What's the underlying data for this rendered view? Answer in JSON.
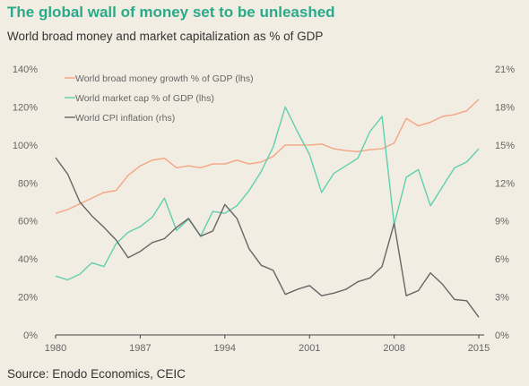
{
  "title": "The global wall of money set to be unleashed",
  "subtitle": "World broad money and market capitalization as % of GDP",
  "source": "Source: Enodo Economics, CEIC",
  "chart_data": {
    "type": "line",
    "xlim": [
      1980,
      2015
    ],
    "ylim_left": [
      0,
      140
    ],
    "ylim_right": [
      0,
      21
    ],
    "x_ticks": [
      "1980",
      "1987",
      "1994",
      "2001",
      "2008",
      "2015"
    ],
    "y_left_ticks": [
      "0%",
      "20%",
      "40%",
      "60%",
      "80%",
      "100%",
      "120%",
      "140%"
    ],
    "y_right_ticks": [
      "0%",
      "3%",
      "6%",
      "9%",
      "12%",
      "15%",
      "18%",
      "21%"
    ],
    "grid": false,
    "legend_position": "top-left",
    "series": [
      {
        "name": "World broad money growth % of GDP (lhs)",
        "axis": "left",
        "color": "#f4a582",
        "x": [
          1980,
          1981,
          1982,
          1983,
          1984,
          1985,
          1986,
          1987,
          1988,
          1989,
          1990,
          1991,
          1992,
          1993,
          1994,
          1995,
          1996,
          1997,
          1998,
          1999,
          2000,
          2001,
          2002,
          2003,
          2004,
          2005,
          2006,
          2007,
          2008,
          2009,
          2010,
          2011,
          2012,
          2013,
          2014,
          2015
        ],
        "y": [
          64,
          66,
          69,
          72,
          75,
          76,
          84,
          89,
          92,
          93,
          88,
          89,
          88,
          90,
          90,
          92,
          90,
          91,
          94,
          100,
          100,
          100,
          100.5,
          98,
          97,
          96.5,
          97.5,
          98,
          101,
          114,
          110,
          112,
          115,
          116,
          118,
          124
        ]
      },
      {
        "name": "World market cap % of GDP (lhs)",
        "axis": "left",
        "color": "#5fcfb0",
        "x": [
          1980,
          1981,
          1982,
          1983,
          1984,
          1985,
          1986,
          1987,
          1988,
          1989,
          1990,
          1991,
          1992,
          1993,
          1994,
          1995,
          1996,
          1997,
          1998,
          1999,
          2000,
          2001,
          2002,
          2003,
          2004,
          2005,
          2006,
          2007,
          2008,
          2009,
          2010,
          2011,
          2012,
          2013,
          2014,
          2015
        ],
        "y": [
          31,
          29,
          32,
          38,
          36,
          48,
          54,
          57,
          62,
          72,
          55,
          61,
          52,
          65,
          64,
          68,
          76,
          86,
          99,
          120,
          107,
          95,
          75,
          85,
          89,
          93,
          107,
          115,
          58,
          83,
          87,
          68,
          78,
          88,
          91,
          98
        ]
      },
      {
        "name": "World CPI inflation (rhs)",
        "axis": "right",
        "color": "#666666",
        "x": [
          1980,
          1981,
          1982,
          1983,
          1984,
          1985,
          1986,
          1987,
          1988,
          1989,
          1990,
          1991,
          1992,
          1993,
          1994,
          1995,
          1996,
          1997,
          1998,
          1999,
          2000,
          2001,
          2002,
          2003,
          2004,
          2005,
          2006,
          2007,
          2008,
          2009,
          2010,
          2011,
          2012,
          2013,
          2014,
          2015
        ],
        "y": [
          14,
          12.7,
          10.5,
          9.4,
          8.5,
          7.5,
          6.1,
          6.6,
          7.3,
          7.6,
          8.5,
          9.2,
          7.8,
          8.2,
          10.3,
          9.2,
          6.8,
          5.5,
          5.1,
          3.2,
          3.6,
          3.9,
          3.1,
          3.3,
          3.6,
          4.2,
          4.5,
          5.4,
          8.8,
          3.1,
          3.5,
          4.9,
          4,
          2.8,
          2.7,
          1.4
        ]
      }
    ]
  }
}
